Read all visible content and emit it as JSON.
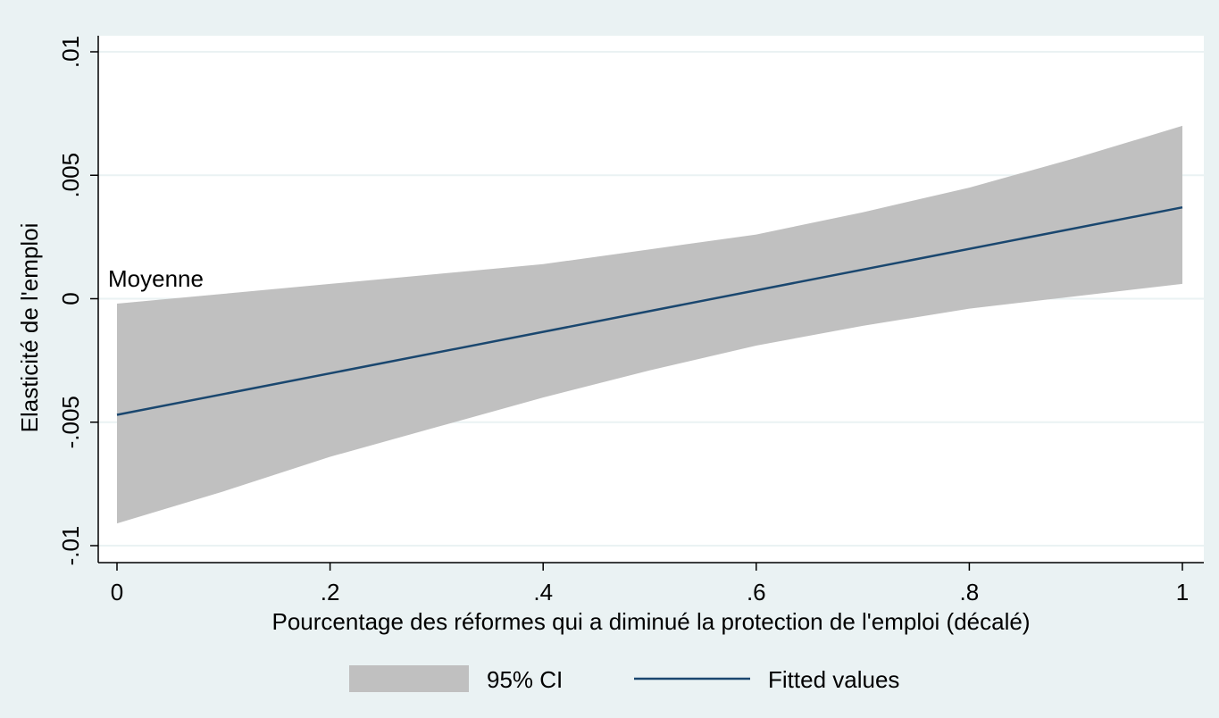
{
  "chart_data": {
    "type": "area",
    "xlabel": "Pourcentage des réformes qui a diminué la protection de l'emploi (décalé)",
    "ylabel": "Elasticité de l'emploi",
    "xlim": [
      0,
      1
    ],
    "ylim": [
      -0.01,
      0.01
    ],
    "x_ticks": [
      {
        "value": 0,
        "label": "0"
      },
      {
        "value": 0.2,
        "label": ".2"
      },
      {
        "value": 0.4,
        "label": ".4"
      },
      {
        "value": 0.6,
        "label": ".6"
      },
      {
        "value": 0.8,
        "label": ".8"
      },
      {
        "value": 1,
        "label": "1"
      }
    ],
    "y_ticks": [
      {
        "value": -0.01,
        "label": "-.01"
      },
      {
        "value": -0.005,
        "label": "-.005"
      },
      {
        "value": 0,
        "label": "0"
      },
      {
        "value": 0.005,
        "label": ".005"
      },
      {
        "value": 0.01,
        "label": ".01"
      }
    ],
    "grid": true,
    "legend_position": "bottom",
    "annotation": {
      "text": "Moyenne",
      "x": 0,
      "y": 0.001
    },
    "series": [
      {
        "name": "95% CI",
        "kind": "band",
        "color": "#c0c0c0",
        "x": [
          0,
          0.1,
          0.2,
          0.3,
          0.4,
          0.5,
          0.6,
          0.7,
          0.8,
          0.9,
          1.0
        ],
        "lower": [
          -0.0091,
          -0.0078,
          -0.0064,
          -0.0052,
          -0.004,
          -0.0029,
          -0.0019,
          -0.0011,
          -0.0004,
          0.0001,
          0.0006
        ],
        "upper": [
          -0.0002,
          0.0002,
          0.0006,
          0.001,
          0.0014,
          0.002,
          0.0026,
          0.0035,
          0.0045,
          0.0057,
          0.007
        ]
      },
      {
        "name": "Fitted values",
        "kind": "line",
        "color": "#1a476f",
        "x": [
          0,
          1
        ],
        "y": [
          -0.0047,
          0.0037
        ]
      }
    ]
  },
  "colors": {
    "outer_background": "#eaf2f3",
    "plot_background": "#ffffff",
    "grid": "#eaf2f3",
    "ci_fill": "#c0c0c0",
    "fit_line": "#1a476f"
  }
}
